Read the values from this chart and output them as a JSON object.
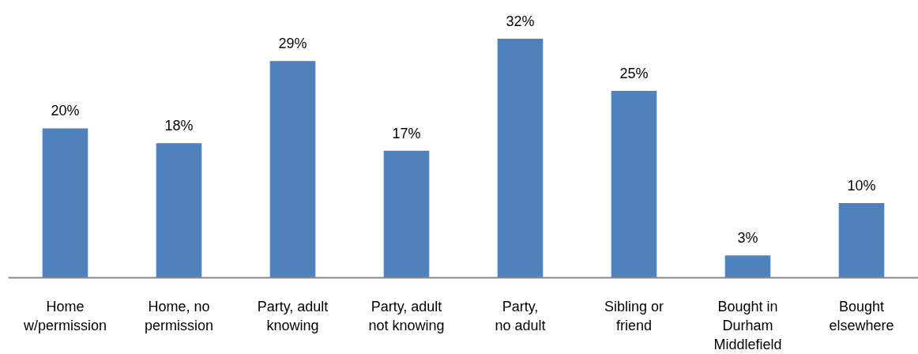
{
  "chart_data": {
    "type": "bar",
    "categories": [
      "Home\nw/permission",
      "Home, no\npermission",
      "Party, adult\nknowing",
      "Party, adult\nnot knowing",
      "Party,\nno adult",
      "Sibling or\nfriend",
      "Bought in\nDurham\nMiddlefield",
      "Bought\nelsewhere"
    ],
    "values": [
      20,
      18,
      29,
      17,
      32,
      25,
      3,
      10
    ],
    "value_labels": [
      "20%",
      "18%",
      "29%",
      "17%",
      "32%",
      "25%",
      "3%",
      "10%"
    ],
    "color": "#4f81bd"
  }
}
